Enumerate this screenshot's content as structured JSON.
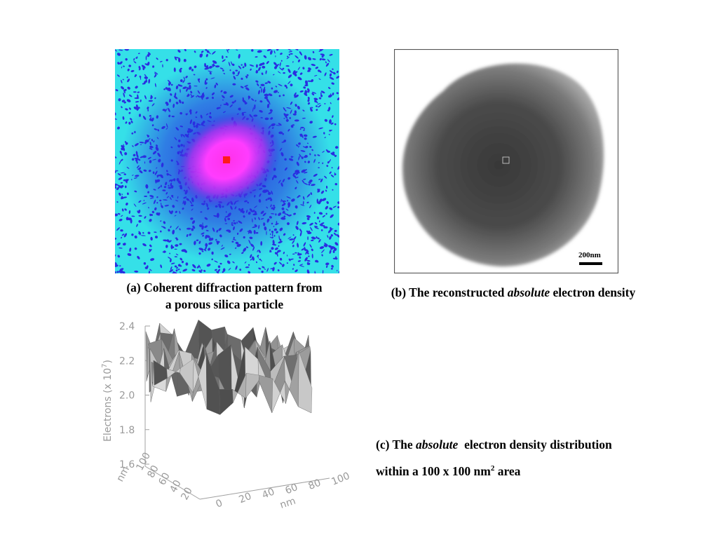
{
  "figure": {
    "panel_a": {
      "caption_line1": "(a) Coherent diffraction pattern from",
      "caption_line2": "a porous silica particle",
      "colors": {
        "background": "#35e0e8",
        "speckle": "#2a2ee0",
        "center": "#ff3cff",
        "core": "#ff1a1a"
      }
    },
    "panel_b": {
      "caption_prefix": "(b) The reconstructed ",
      "caption_italic": "absolute",
      "caption_suffix": " electron density",
      "scale_bar_label": "200nm",
      "colors": {
        "particle": "#3c3c3c",
        "edge": "#9a9a9a"
      }
    },
    "panel_c": {
      "caption_prefix": "(c) The ",
      "caption_italic": "absolute",
      "caption_mid": "  electron density distribution",
      "caption_line2": "within a 100 x 100 nm",
      "caption_sup": "2",
      "caption_end": " area",
      "ylabel_main": "Electrons (x 10",
      "ylabel_exp": "7",
      "ylabel_close": ")",
      "z_ticks": [
        "1.6",
        "1.8",
        "2.0",
        "2.2",
        "2.4"
      ],
      "x_ticks": [
        "0",
        "20",
        "40",
        "60",
        "80",
        "100"
      ],
      "y_ticks": [
        "20",
        "40",
        "60",
        "80",
        "100"
      ],
      "x_label": "nm",
      "y_label": "nm"
    }
  }
}
